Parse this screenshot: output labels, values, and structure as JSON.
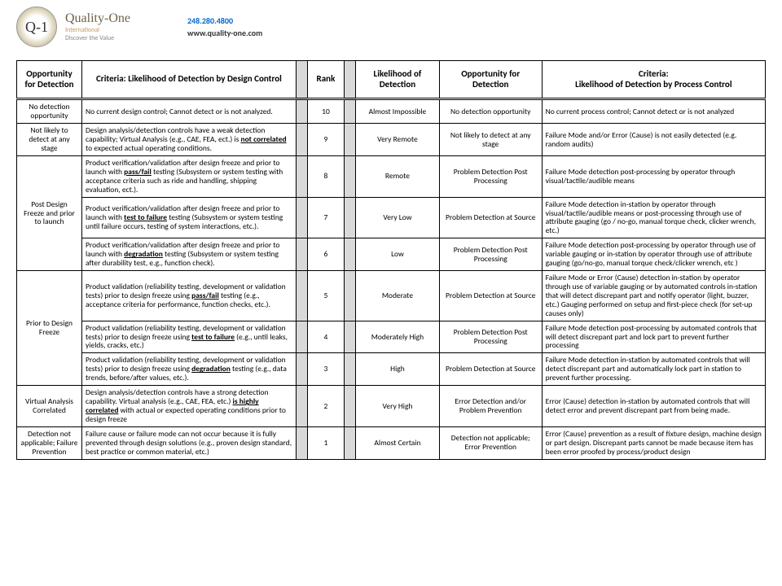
{
  "header": {
    "logo_text": "Q-1",
    "brand_name": "Quality-One",
    "brand_sub1": "International",
    "brand_sub2": "Discover the Value",
    "phone": "248.280.4800",
    "url": "www.quality-one.com"
  },
  "columns": {
    "opp1": "Opportunity for Detection",
    "crit1": "Criteria: Likelihood of Detection by Design Control",
    "rank": "Rank",
    "lod": "Likelihood of Detection",
    "opp2": "Opportunity for Detection",
    "crit2": "Criteria:\nLikelihood of Detection by Process Control"
  },
  "groups": [
    {
      "opp1": "No detection opportunity",
      "rows": [
        {
          "crit1_pre": "No current design control; Cannot detect or is not analyzed.",
          "rank": "10",
          "lod": "Almost Impossible",
          "opp2": "No detection opportunity",
          "crit2": "No current process control; Cannot detect or is not analyzed"
        }
      ]
    },
    {
      "opp1": "Not likely to detect at any stage",
      "rows": [
        {
          "crit1_pre": "Design analysis/detection controls have a weak detection capability; Virtual Analysis (e.g., CAE, FEA, ect.) is ",
          "crit1_bu": "not correlated",
          "crit1_post": " to expected actual operating conditions.",
          "rank": "9",
          "lod": "Very Remote",
          "opp2": "Not likely to detect at any stage",
          "crit2": "Failure Mode and/or Error (Cause) is not easily detected (e.g. random audits)"
        }
      ]
    },
    {
      "opp1": "Post Design Freeze and prior to launch",
      "rows": [
        {
          "crit1_pre": "Product verification/validation after design freeze and prior to launch with ",
          "crit1_bu": "pass/fail",
          "crit1_post": " testing (Subsystem or system testing with acceptance criteria such as ride and handling, shipping evaluation, ect.).",
          "rank": "8",
          "lod": "Remote",
          "opp2": "Problem Detection Post Processing",
          "crit2": "Failure Mode detection post-processing by operator through visual/tactile/audible means"
        },
        {
          "crit1_pre": "Product verification/validation after design freeze and prior to launch with ",
          "crit1_bu": "test to failure",
          "crit1_post": " testing (Subsystem or system testing until failure occurs, testing of system interactions, etc.).",
          "rank": "7",
          "lod": "Very Low",
          "opp2": "Problem Detection at Source",
          "crit2": "Failure Mode detection in-station by operator through visual/tactile/audible means or post-processing through use of attribute gauging (go / no-go, manual torque check, clicker wrench, etc.)"
        },
        {
          "crit1_pre": "Product verification/validation after design freeze and prior to launch with ",
          "crit1_bu": "degradation",
          "crit1_post": " testing (Subsystem or system testing after durability test, e.g., function check).",
          "rank": "6",
          "lod": "Low",
          "opp2": "Problem Detection Post Processing",
          "crit2": "Failure Mode detection post-processing by operator through use of variable gauging or in-station by operator through use of attribute gauging (go/no-go, manual torque check/clicker wrench, etc )"
        }
      ]
    },
    {
      "opp1": "Prior to Design Freeze",
      "rows": [
        {
          "crit1_pre": "Product validation (reliability testing, development or validation tests) prior to design freeze using ",
          "crit1_bu": "pass/fail",
          "crit1_post": " testing (e.g., acceptance criteria for performance, function checks, etc.).",
          "rank": "5",
          "lod": "Moderate",
          "opp2": "Problem Detection at Source",
          "crit2": "Failure Mode or Error (Cause) detection in-station by operator through use of variable gauging or by automated controls in-station that will detect discrepant part and notify operator (light, buzzer, etc.)  Gauging performed on setup and first-piece check (for set-up causes only)"
        },
        {
          "crit1_pre": "Product validation (reliability testing, development or validation tests) prior to design freeze using ",
          "crit1_bu": "test to failure",
          "crit1_post": " (e.g., until leaks, yields, cracks, etc.)",
          "rank": "4",
          "lod": "Moderately High",
          "opp2": "Problem Detection Post Processing",
          "crit2": "Failure Mode detection post-processing by automated controls that will detect discrepant part and lock part to prevent further processing"
        },
        {
          "crit1_pre": "Product validation (reliability testing, development or validation tests) prior to design freeze using ",
          "crit1_bu": "degradation",
          "crit1_post": " testing (e.g., data trends, before/after values, etc.).",
          "rank": "3",
          "lod": "High",
          "opp2": "Problem Detection at Source",
          "crit2": "Failure Mode detection in-station by automated controls that will detect discrepant part and automatically lock part in station to prevent further processing."
        }
      ]
    },
    {
      "opp1": "Virtual Analysis Correlated",
      "rows": [
        {
          "crit1_pre": "Design analysis/detection controls have a strong detection capability. Virtual analysis (e.g., CAE, FEA, etc.) ",
          "crit1_bu": "is highly correlated",
          "crit1_post": " with actual or expected operating conditions prior to design freeze",
          "rank": "2",
          "lod": "Very High",
          "opp2": "Error Detection and/or Problem Prevention",
          "crit2": "Error (Cause) detection in-station by automated controls that will detect error and prevent discrepant part from being made."
        }
      ]
    },
    {
      "opp1": "Detection not applicable; Failure Prevention",
      "rows": [
        {
          "crit1_pre": "Failure cause or failure mode can not occur because it is fully prevented through design solutions (e.g., proven design standard, best practice or common material, etc.)",
          "rank": "1",
          "lod": "Almost Certain",
          "opp2": "Detection not applicable; Error Prevention",
          "crit2": "Error (Cause) prevention as a result of fixture design, machine design or part design.  Discrepant parts cannot be made because item has been error proofed by process/product design"
        }
      ]
    }
  ]
}
